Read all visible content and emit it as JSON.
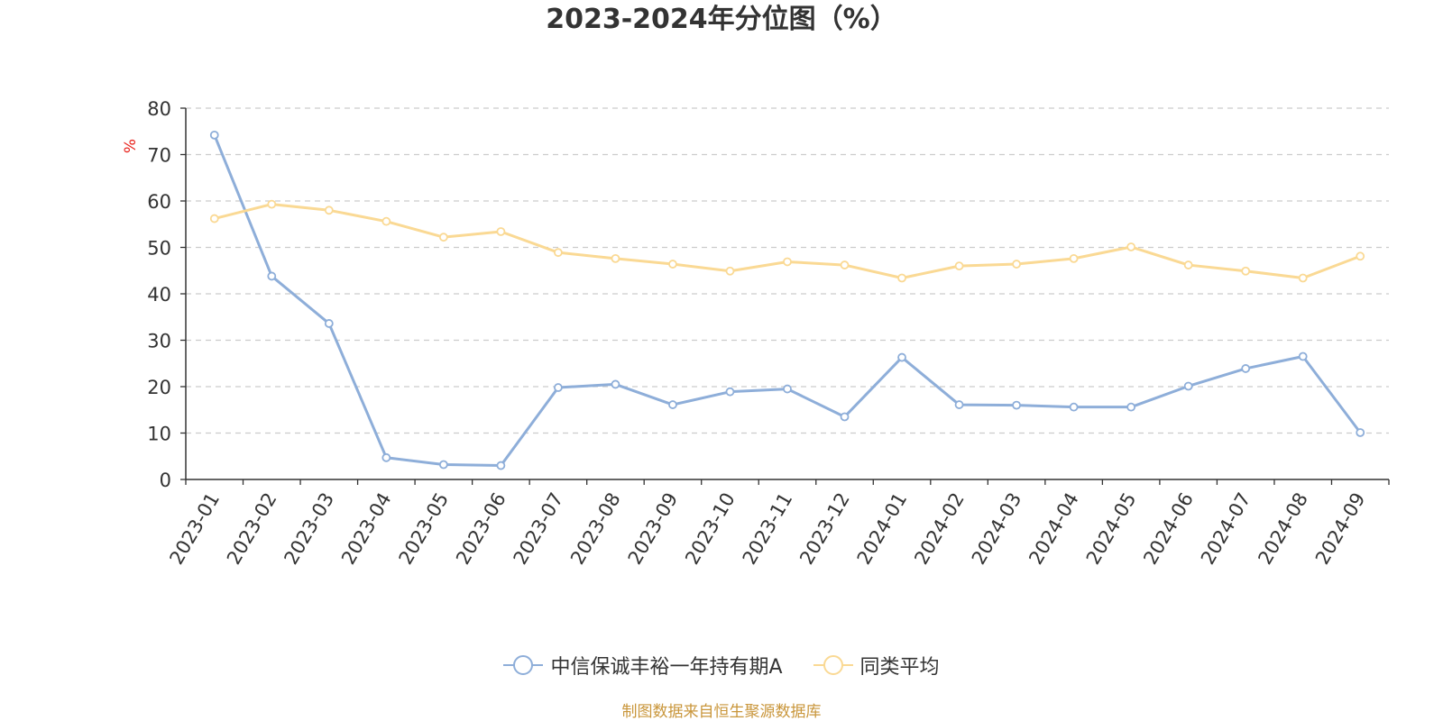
{
  "chart_data": {
    "type": "line",
    "title": "2023-2024年分位图（%）",
    "ylabel": "%",
    "xlabel": "",
    "ylim": [
      0,
      80
    ],
    "yticks": [
      0,
      10,
      20,
      30,
      40,
      50,
      60,
      70,
      80
    ],
    "grid": true,
    "legend_position": "bottom-center",
    "categories": [
      "2023-01",
      "2023-02",
      "2023-03",
      "2023-04",
      "2023-05",
      "2023-06",
      "2023-07",
      "2023-08",
      "2023-09",
      "2023-10",
      "2023-11",
      "2023-12",
      "2024-01",
      "2024-02",
      "2024-03",
      "2024-04",
      "2024-05",
      "2024-06",
      "2024-07",
      "2024-08",
      "2024-09"
    ],
    "series": [
      {
        "name": "中信保诚丰裕一年持有期A",
        "color": "#8eaed9",
        "values": [
          74.2,
          43.8,
          33.6,
          4.7,
          3.2,
          3.0,
          19.8,
          20.5,
          16.1,
          18.9,
          19.5,
          13.5,
          26.3,
          16.1,
          16.0,
          15.6,
          15.6,
          20.1,
          23.9,
          26.5,
          10.1
        ]
      },
      {
        "name": "同类平均",
        "color": "#fad994",
        "values": [
          56.2,
          59.3,
          58.0,
          55.6,
          52.2,
          53.4,
          48.9,
          47.6,
          46.4,
          44.9,
          46.9,
          46.2,
          43.4,
          46.0,
          46.4,
          47.6,
          50.1,
          46.2,
          44.9,
          43.4,
          48.1
        ]
      }
    ]
  },
  "source_note": "制图数据来自恒生聚源数据库"
}
